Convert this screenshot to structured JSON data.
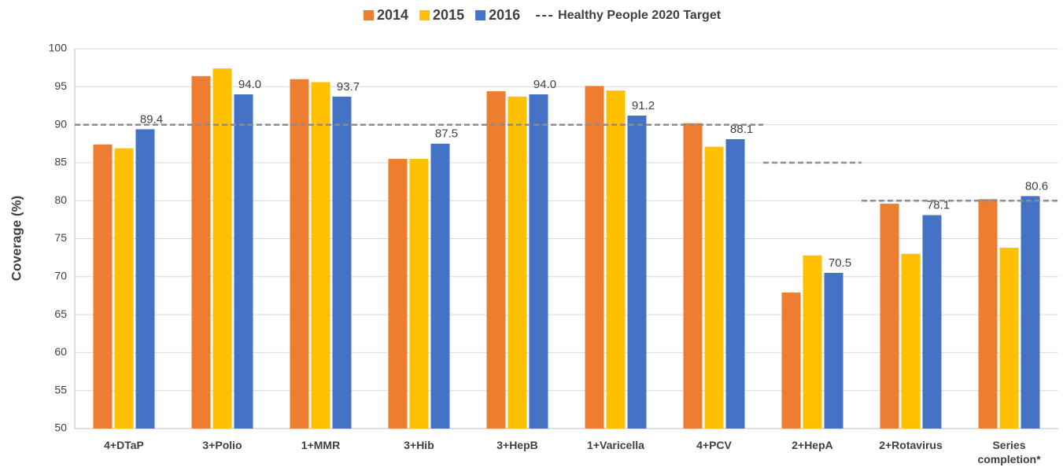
{
  "chart_data": {
    "type": "bar",
    "ylabel": "Coverage (%)",
    "categories": [
      "4+DTaP",
      "3+Polio",
      "1+MMR",
      "3+Hib",
      "3+HepB",
      "1+Varicella",
      "4+PCV",
      "2+HepA",
      "2+Rotavirus",
      "Series completion*"
    ],
    "series": [
      {
        "name": "2014",
        "color": "#ed7d31",
        "values": [
          87.4,
          96.4,
          96.0,
          85.5,
          94.4,
          95.1,
          90.2,
          67.9,
          79.6,
          80.2
        ]
      },
      {
        "name": "2015",
        "color": "#ffc000",
        "values": [
          86.9,
          97.4,
          95.6,
          85.5,
          93.7,
          94.5,
          87.1,
          72.8,
          73.0,
          73.8
        ]
      },
      {
        "name": "2016",
        "color": "#4472c4",
        "values": [
          89.4,
          94.0,
          93.7,
          87.5,
          94.0,
          91.2,
          88.1,
          70.5,
          78.1,
          80.6
        ],
        "value_labels": [
          "89.4",
          "94.0",
          "93.7",
          "87.5",
          "94.0",
          "91.2",
          "88.1",
          "70.5",
          "78.1",
          "80.6"
        ]
      }
    ],
    "target_name": "Healthy People 2020 Target",
    "target_color": "#8c8c8c",
    "target": [
      90,
      90,
      90,
      90,
      90,
      90,
      90,
      85,
      80,
      80
    ],
    "ylim": [
      50,
      100
    ],
    "yticks": [
      50,
      55,
      60,
      65,
      70,
      75,
      80,
      85,
      90,
      95,
      100
    ],
    "grid": true,
    "legend": "top"
  }
}
